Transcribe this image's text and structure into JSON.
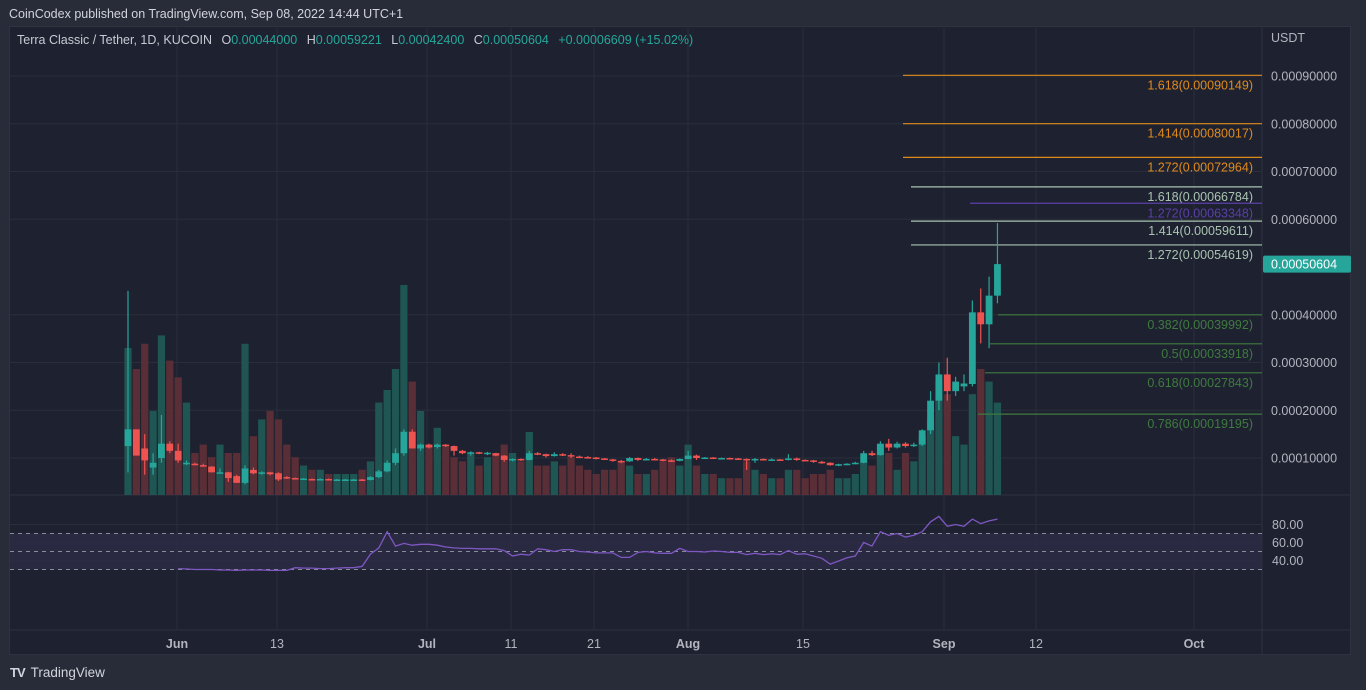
{
  "header": {
    "publisher_line": "CoinCodex published on TradingView.com, Sep 08, 2022 14:44 UTC+1"
  },
  "legend": {
    "symbol": "Terra Classic / Tether, 1D, KUCOIN",
    "o_label": "O",
    "o_value": "0.00044000",
    "h_label": "H",
    "h_value": "0.00059221",
    "l_label": "L",
    "l_value": "0.00042400",
    "c_label": "C",
    "c_value": "0.00050604",
    "change": "+0.00006609 (+15.02%)"
  },
  "footer": {
    "brand": "TradingView",
    "logo_glyph": "TV"
  },
  "colors": {
    "up": "#26a69a",
    "down": "#ef5350",
    "up_volume": "#1f5653",
    "down_volume": "#5a2e36",
    "fib_orange": "#e08a1c",
    "fib_pale": "#a9c3b0",
    "fib_purple": "#5b3fa8",
    "fib_green": "#3f7a3f",
    "rsi_line": "#7e57c2",
    "rsi_band": "#2d2a45",
    "last_price_bg": "#26a69a",
    "grid": "#2a2e3b",
    "axis_text": "#b2b5be"
  },
  "chart_data": {
    "type": "candlestick",
    "title": "Terra Classic / Tether, 1D, KUCOIN",
    "xlabel": "",
    "ylabel": "USDT",
    "price_axis": {
      "unit": "USDT",
      "ticks": [
        "0.00090000",
        "0.00080000",
        "0.00070000",
        "0.00060000",
        "0.00040000",
        "0.00030000",
        "0.00020000",
        "0.00010000"
      ],
      "tick_values": [
        0.0009,
        0.0008,
        0.0007,
        0.0006,
        0.0004,
        0.0003,
        0.0002,
        0.0001
      ],
      "last_price_label": "0.00050604",
      "last_price": 0.00050604
    },
    "time_axis": {
      "ticks": [
        {
          "label": "Jun",
          "bold": true
        },
        {
          "label": "13",
          "bold": false
        },
        {
          "label": "Jul",
          "bold": true
        },
        {
          "label": "11",
          "bold": false
        },
        {
          "label": "21",
          "bold": false
        },
        {
          "label": "Aug",
          "bold": true
        },
        {
          "label": "15",
          "bold": false
        },
        {
          "label": "Sep",
          "bold": true
        },
        {
          "label": "12",
          "bold": false
        },
        {
          "label": "Oct",
          "bold": true
        }
      ]
    },
    "fib_levels": [
      {
        "ratio": "1.618",
        "price": "0.00090149",
        "group": "orange"
      },
      {
        "ratio": "1.414",
        "price": "0.00080017",
        "group": "orange"
      },
      {
        "ratio": "1.272",
        "price": "0.00072964",
        "group": "orange"
      },
      {
        "ratio": "1.618",
        "price": "0.00066784",
        "group": "pale"
      },
      {
        "ratio": "1.272",
        "price": "0.00063348",
        "group": "purple"
      },
      {
        "ratio": "1.414",
        "price": "0.00059611",
        "group": "pale"
      },
      {
        "ratio": "1.272",
        "price": "0.00054619",
        "group": "pale"
      },
      {
        "ratio": "0.382",
        "price": "0.00039992",
        "group": "green"
      },
      {
        "ratio": "0.5",
        "price": "0.00033918",
        "group": "green"
      },
      {
        "ratio": "0.618",
        "price": "0.00027843",
        "group": "green"
      },
      {
        "ratio": "0.786",
        "price": "0.00019195",
        "group": "green"
      }
    ],
    "candles_ohlc_e5": [
      [
        12.5,
        45,
        7,
        16
      ],
      [
        16,
        16,
        11,
        10.5
      ],
      [
        12,
        15,
        6.5,
        9.5
      ],
      [
        8,
        11,
        6.5,
        9
      ],
      [
        10,
        19,
        9,
        13
      ],
      [
        13,
        13.5,
        11,
        11.5
      ],
      [
        11.5,
        13,
        9,
        9.5
      ],
      [
        9,
        9.5,
        8.5,
        9
      ],
      [
        8.8,
        9,
        8.5,
        8.5
      ],
      [
        8.5,
        8.8,
        8.2,
        8.3
      ],
      [
        8.2,
        8.3,
        7,
        7
      ],
      [
        7,
        7.8,
        6.8,
        7
      ],
      [
        7,
        7.1,
        5,
        5.8
      ],
      [
        6.2,
        6.5,
        4.8,
        4.8
      ],
      [
        4.8,
        8.5,
        4.5,
        7.8
      ],
      [
        7.5,
        8,
        6.6,
        6.8
      ],
      [
        7,
        7.2,
        6.5,
        7
      ],
      [
        7,
        7.1,
        6.4,
        6.6
      ],
      [
        6.8,
        7,
        5.2,
        5.5
      ],
      [
        6,
        6.2,
        5.6,
        5.8
      ],
      [
        5.8,
        5.9,
        5.6,
        5.7
      ],
      [
        5.7,
        5.8,
        5.5,
        5.7
      ],
      [
        5.6,
        5.7,
        5.4,
        5.4
      ],
      [
        5.4,
        5.7,
        5.3,
        5.6
      ],
      [
        5.6,
        5.7,
        5.4,
        5.5
      ],
      [
        5.5,
        5.6,
        5.4,
        5.5
      ],
      [
        5.4,
        5.6,
        5.3,
        5.5
      ],
      [
        5.5,
        5.6,
        5.4,
        5.5
      ],
      [
        5.5,
        5.6,
        5.3,
        5.4
      ],
      [
        5.4,
        6.2,
        5.3,
        6
      ],
      [
        6,
        7.5,
        5.8,
        7.2
      ],
      [
        7.2,
        9.5,
        7,
        9
      ],
      [
        9,
        12,
        8.5,
        11
      ],
      [
        11,
        16,
        10.5,
        15.5
      ],
      [
        15.5,
        16,
        12,
        12
      ],
      [
        12,
        13,
        11.5,
        12.8
      ],
      [
        12.8,
        13,
        12,
        12.2
      ],
      [
        12.3,
        13,
        12,
        12.8
      ],
      [
        12.8,
        12.9,
        12.3,
        12.5
      ],
      [
        12.5,
        12.6,
        10.5,
        11.5
      ],
      [
        11.5,
        11.7,
        10.8,
        11
      ],
      [
        11,
        11.4,
        10.5,
        11.2
      ],
      [
        11.2,
        11.3,
        10.8,
        11
      ],
      [
        11,
        11.3,
        10.6,
        11.1
      ],
      [
        11,
        11.1,
        10.4,
        10.5
      ],
      [
        10.5,
        10.6,
        9.2,
        9.6
      ],
      [
        9.6,
        9.9,
        9.3,
        9.8
      ],
      [
        9.8,
        9.9,
        9.4,
        9.6
      ],
      [
        9.6,
        11.5,
        9.5,
        11
      ],
      [
        11,
        11.2,
        10.6,
        10.8
      ],
      [
        10.8,
        10.9,
        10.1,
        10.4
      ],
      [
        10.4,
        11.2,
        10.3,
        10.8
      ],
      [
        10.8,
        11,
        10.4,
        10.6
      ],
      [
        10.6,
        11,
        10,
        10.3
      ],
      [
        10.3,
        10.5,
        10,
        10.2
      ],
      [
        10.2,
        10.4,
        9.9,
        10.1
      ],
      [
        10.1,
        10.2,
        9.7,
        9.9
      ],
      [
        9.9,
        10,
        9.6,
        9.7
      ],
      [
        9.7,
        9.8,
        9.2,
        9.4
      ],
      [
        9.4,
        9.6,
        8.9,
        9.3
      ],
      [
        9.3,
        10.2,
        9.2,
        10
      ],
      [
        10,
        10.1,
        9.4,
        9.6
      ],
      [
        9.6,
        10,
        9.5,
        9.8
      ],
      [
        9.8,
        10,
        9.6,
        9.7
      ],
      [
        9.7,
        9.8,
        9.3,
        9.5
      ],
      [
        9.5,
        9.7,
        9.2,
        9.4
      ],
      [
        9.4,
        9.9,
        9.3,
        9.8
      ],
      [
        9.8,
        11.5,
        9.7,
        10.5
      ],
      [
        10.5,
        10.7,
        9.6,
        10
      ],
      [
        10,
        10.2,
        9.8,
        10.1
      ],
      [
        10.1,
        10.2,
        9.8,
        9.9
      ],
      [
        9.9,
        10.1,
        9.8,
        10
      ],
      [
        10,
        10.1,
        9.8,
        9.9
      ],
      [
        9.9,
        10,
        9.7,
        9.8
      ],
      [
        9.8,
        9.9,
        7.5,
        9.6
      ],
      [
        9.6,
        10,
        9,
        9.8
      ],
      [
        9.8,
        9.9,
        9.5,
        9.6
      ],
      [
        9.6,
        9.9,
        9.4,
        9.7
      ],
      [
        9.7,
        9.8,
        9.5,
        9.6
      ],
      [
        9.6,
        10.8,
        9.5,
        9.9
      ],
      [
        9.9,
        10.1,
        9.4,
        9.6
      ],
      [
        9.6,
        9.7,
        9.4,
        9.5
      ],
      [
        9.5,
        9.6,
        9,
        9.2
      ],
      [
        9.2,
        9.4,
        8.8,
        9
      ],
      [
        9,
        9.1,
        8.4,
        8.5
      ],
      [
        8.5,
        8.8,
        8.3,
        8.7
      ],
      [
        8.7,
        8.9,
        8.5,
        8.8
      ],
      [
        8.8,
        9.2,
        8.7,
        9
      ],
      [
        9,
        11.5,
        8.9,
        11
      ],
      [
        11,
        11.5,
        10.4,
        10.6
      ],
      [
        10.6,
        13.5,
        10.5,
        13
      ],
      [
        13,
        14,
        11.5,
        12.2
      ],
      [
        12.2,
        13.4,
        12,
        13
      ],
      [
        13,
        13.3,
        12.2,
        12.5
      ],
      [
        12.5,
        13.2,
        12.3,
        12.8
      ],
      [
        12.8,
        16,
        12.5,
        15.8
      ],
      [
        15.8,
        24,
        15,
        22
      ],
      [
        22,
        30,
        20,
        27.5
      ],
      [
        27.5,
        31,
        22,
        24
      ],
      [
        24,
        27,
        23,
        26
      ],
      [
        25,
        27.5,
        24,
        25.6
      ],
      [
        25.5,
        43,
        25,
        40.5
      ],
      [
        40.5,
        45.5,
        34,
        38
      ],
      [
        38,
        48,
        33,
        44
      ],
      [
        44,
        59.2,
        42.4,
        50.6
      ]
    ],
    "volumes_rel": [
      0.35,
      0.3,
      0.36,
      0.2,
      0.38,
      0.32,
      0.28,
      0.22,
      0.1,
      0.12,
      0.09,
      0.12,
      0.1,
      0.1,
      0.36,
      0.14,
      0.18,
      0.2,
      0.18,
      0.12,
      0.09,
      0.07,
      0.06,
      0.06,
      0.05,
      0.05,
      0.05,
      0.05,
      0.06,
      0.08,
      0.22,
      0.25,
      0.3,
      0.5,
      0.27,
      0.2,
      0.12,
      0.16,
      0.12,
      0.09,
      0.08,
      0.1,
      0.07,
      0.09,
      0.1,
      0.12,
      0.1,
      0.08,
      0.15,
      0.07,
      0.07,
      0.08,
      0.07,
      0.09,
      0.07,
      0.06,
      0.05,
      0.06,
      0.06,
      0.08,
      0.07,
      0.05,
      0.05,
      0.06,
      0.08,
      0.09,
      0.07,
      0.12,
      0.07,
      0.05,
      0.05,
      0.04,
      0.04,
      0.04,
      0.08,
      0.06,
      0.05,
      0.04,
      0.04,
      0.06,
      0.06,
      0.04,
      0.05,
      0.05,
      0.06,
      0.04,
      0.04,
      0.05,
      0.08,
      0.07,
      0.12,
      0.1,
      0.06,
      0.1,
      0.08,
      0.14,
      0.18,
      0.27,
      0.24,
      0.14,
      0.12,
      0.24,
      0.3,
      0.27,
      0.22
    ],
    "rsi": {
      "ticks": [
        "80.00",
        "60.00",
        "40.00"
      ],
      "tick_values": [
        80,
        60,
        40
      ],
      "bands": [
        70,
        50,
        30
      ],
      "values": [
        31,
        30.5,
        30,
        30,
        30,
        29.5,
        29.5,
        29,
        29.5,
        29.5,
        29.5,
        29,
        29,
        29,
        32,
        31.5,
        31.5,
        31,
        31,
        31.5,
        32,
        32,
        33.5,
        47,
        54,
        72,
        56,
        59,
        57,
        58,
        58,
        57,
        55,
        54,
        53.5,
        53.5,
        53,
        53,
        53,
        51,
        45,
        47,
        46,
        53,
        52,
        50,
        52,
        52,
        50,
        49.5,
        48.5,
        48.5,
        48.5,
        43.5,
        43.5,
        49,
        50,
        48.5,
        48,
        48,
        53.5,
        50,
        50,
        49.5,
        50.5,
        50,
        49,
        49,
        46.5,
        48,
        46.5,
        47.5,
        46.5,
        51,
        47,
        47.5,
        45,
        42.5,
        36,
        39.5,
        43,
        45,
        60,
        56,
        72,
        68,
        70,
        66,
        68,
        72,
        83,
        89,
        78,
        80,
        78,
        86,
        81,
        84,
        86
      ]
    }
  }
}
